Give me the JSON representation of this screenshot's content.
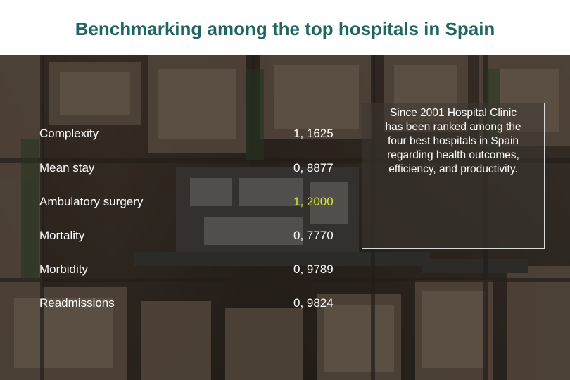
{
  "slide": {
    "title": "Benchmarking among the top hospitals in Spain"
  },
  "metrics": [
    {
      "label": "Complexity",
      "value": "1, 1625",
      "highlight": false
    },
    {
      "label": "Mean stay",
      "value": "0, 8877",
      "highlight": false
    },
    {
      "label": "Ambulatory surgery",
      "value": "1, 2000",
      "highlight": true
    },
    {
      "label": "Mortality",
      "value": "0, 7770",
      "highlight": false
    },
    {
      "label": "Morbidity",
      "value": "0, 9789",
      "highlight": false
    },
    {
      "label": "Readmissions",
      "value": "0, 9824",
      "highlight": false
    }
  ],
  "note": {
    "lines": [
      "Since 2001 Hospital Clinic",
      "has been ranked among the",
      "four best hospitals in Spain",
      "regarding health outcomes,",
      "efficiency, and productivity."
    ]
  },
  "colors": {
    "title": "#1f6660",
    "text": "#ffffff",
    "highlight": "#d6e635"
  }
}
